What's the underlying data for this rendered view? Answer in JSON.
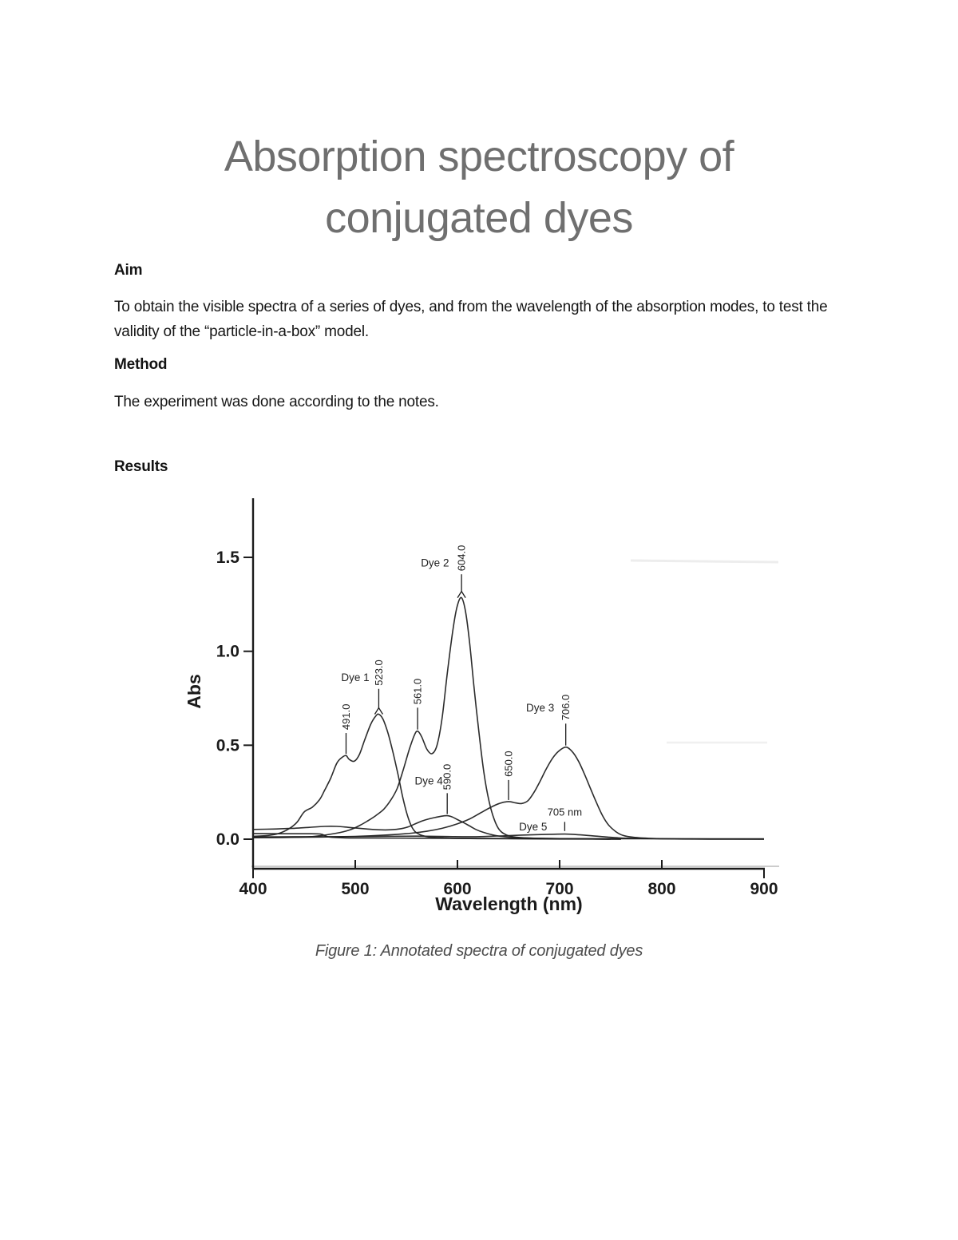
{
  "document": {
    "title_line1": "Absorption spectroscopy of",
    "title_line2": "conjugated dyes",
    "sections": [
      {
        "heading": "Aim",
        "body": "To obtain the visible spectra of a series of dyes, and from the wavelength of the absorption modes, to test the validity of the “particle-in-a-box” model."
      },
      {
        "heading": "Method",
        "body": "The experiment was done according to the notes."
      },
      {
        "heading": "Results",
        "body": ""
      }
    ],
    "figure_caption": "Figure 1: Annotated spectra of conjugated dyes"
  },
  "chart_data": {
    "type": "line",
    "title": "",
    "xlabel": "Wavelength (nm)",
    "ylabel": "Abs",
    "xlim": [
      400,
      900
    ],
    "ylim": [
      0,
      1.75
    ],
    "grid": false,
    "legend": "none (curves annotated in-plot)",
    "x_ticks": [
      {
        "value": 400,
        "label": "400"
      },
      {
        "value": 500,
        "label": "500"
      },
      {
        "value": 600,
        "label": "600"
      },
      {
        "value": 700,
        "label": "700"
      },
      {
        "value": 800,
        "label": "800"
      },
      {
        "value": 900,
        "label": "900"
      }
    ],
    "y_ticks": [
      {
        "value": 0.0,
        "label": "0.0"
      },
      {
        "value": 0.5,
        "label": "0.5"
      },
      {
        "value": 1.0,
        "label": "1.0"
      },
      {
        "value": 1.5,
        "label": "1.5"
      }
    ],
    "series": [
      {
        "name": "Dye 1",
        "peak_nm": 523.0,
        "peak_abs": 0.665,
        "points": [
          [
            400,
            0.015
          ],
          [
            415,
            0.02
          ],
          [
            425,
            0.03
          ],
          [
            435,
            0.055
          ],
          [
            443,
            0.09
          ],
          [
            450,
            0.145
          ],
          [
            458,
            0.17
          ],
          [
            465,
            0.21
          ],
          [
            470,
            0.26
          ],
          [
            476,
            0.325
          ],
          [
            482,
            0.405
          ],
          [
            487,
            0.435
          ],
          [
            491,
            0.445
          ],
          [
            494,
            0.425
          ],
          [
            499,
            0.415
          ],
          [
            504,
            0.45
          ],
          [
            509,
            0.525
          ],
          [
            515,
            0.61
          ],
          [
            520,
            0.655
          ],
          [
            523,
            0.665
          ],
          [
            527,
            0.64
          ],
          [
            532,
            0.565
          ],
          [
            537,
            0.46
          ],
          [
            542,
            0.34
          ],
          [
            547,
            0.21
          ],
          [
            552,
            0.11
          ],
          [
            557,
            0.05
          ],
          [
            563,
            0.025
          ],
          [
            572,
            0.012
          ],
          [
            590,
            0.006
          ],
          [
            620,
            0.003
          ],
          [
            700,
            0.001
          ],
          [
            760,
            0.0
          ]
        ]
      },
      {
        "name": "Dye 2",
        "peak_nm": 604.0,
        "peak_abs": 1.285,
        "points": [
          [
            400,
            0.008
          ],
          [
            440,
            0.01
          ],
          [
            460,
            0.015
          ],
          [
            480,
            0.03
          ],
          [
            495,
            0.05
          ],
          [
            505,
            0.075
          ],
          [
            513,
            0.1
          ],
          [
            520,
            0.125
          ],
          [
            528,
            0.16
          ],
          [
            535,
            0.21
          ],
          [
            541,
            0.27
          ],
          [
            547,
            0.37
          ],
          [
            553,
            0.48
          ],
          [
            558,
            0.555
          ],
          [
            561,
            0.575
          ],
          [
            565,
            0.545
          ],
          [
            570,
            0.48
          ],
          [
            575,
            0.455
          ],
          [
            580,
            0.5
          ],
          [
            585,
            0.645
          ],
          [
            590,
            0.88
          ],
          [
            596,
            1.13
          ],
          [
            600,
            1.245
          ],
          [
            604,
            1.285
          ],
          [
            608,
            1.21
          ],
          [
            612,
            1.04
          ],
          [
            616,
            0.82
          ],
          [
            621,
            0.57
          ],
          [
            626,
            0.35
          ],
          [
            631,
            0.2
          ],
          [
            636,
            0.105
          ],
          [
            641,
            0.05
          ],
          [
            647,
            0.025
          ],
          [
            655,
            0.012
          ],
          [
            670,
            0.006
          ],
          [
            700,
            0.003
          ],
          [
            750,
            0.0
          ]
        ]
      },
      {
        "name": "Dye 3",
        "peak_nm": 706.0,
        "peak_abs": 0.49,
        "points": [
          [
            400,
            0.008
          ],
          [
            450,
            0.01
          ],
          [
            500,
            0.015
          ],
          [
            530,
            0.022
          ],
          [
            555,
            0.032
          ],
          [
            570,
            0.042
          ],
          [
            585,
            0.058
          ],
          [
            600,
            0.082
          ],
          [
            612,
            0.108
          ],
          [
            622,
            0.138
          ],
          [
            632,
            0.168
          ],
          [
            641,
            0.19
          ],
          [
            650,
            0.2
          ],
          [
            657,
            0.193
          ],
          [
            663,
            0.19
          ],
          [
            669,
            0.205
          ],
          [
            675,
            0.25
          ],
          [
            681,
            0.31
          ],
          [
            687,
            0.375
          ],
          [
            693,
            0.43
          ],
          [
            699,
            0.468
          ],
          [
            706,
            0.49
          ],
          [
            712,
            0.468
          ],
          [
            718,
            0.42
          ],
          [
            724,
            0.35
          ],
          [
            730,
            0.272
          ],
          [
            736,
            0.195
          ],
          [
            742,
            0.125
          ],
          [
            748,
            0.075
          ],
          [
            755,
            0.04
          ],
          [
            762,
            0.02
          ],
          [
            772,
            0.01
          ],
          [
            790,
            0.004
          ],
          [
            820,
            0.001
          ],
          [
            900,
            0.0
          ]
        ]
      },
      {
        "name": "Dye 4",
        "peak_nm": 590.0,
        "peak_abs": 0.125,
        "points": [
          [
            400,
            0.052
          ],
          [
            420,
            0.054
          ],
          [
            440,
            0.058
          ],
          [
            455,
            0.063
          ],
          [
            470,
            0.068
          ],
          [
            482,
            0.068
          ],
          [
            495,
            0.062
          ],
          [
            510,
            0.055
          ],
          [
            522,
            0.05
          ],
          [
            535,
            0.05
          ],
          [
            545,
            0.056
          ],
          [
            552,
            0.066
          ],
          [
            558,
            0.08
          ],
          [
            565,
            0.096
          ],
          [
            572,
            0.108
          ],
          [
            578,
            0.115
          ],
          [
            584,
            0.122
          ],
          [
            590,
            0.125
          ],
          [
            595,
            0.118
          ],
          [
            600,
            0.104
          ],
          [
            606,
            0.088
          ],
          [
            612,
            0.07
          ],
          [
            618,
            0.052
          ],
          [
            625,
            0.037
          ],
          [
            632,
            0.026
          ],
          [
            640,
            0.017
          ],
          [
            650,
            0.011
          ],
          [
            662,
            0.007
          ],
          [
            680,
            0.004
          ],
          [
            710,
            0.002
          ],
          [
            760,
            0.0
          ]
        ]
      },
      {
        "name": "Dye 5",
        "peak_nm": 705,
        "peak_abs": 0.027,
        "points": [
          [
            400,
            0.012
          ],
          [
            440,
            0.013
          ],
          [
            480,
            0.013
          ],
          [
            520,
            0.015
          ],
          [
            560,
            0.016
          ],
          [
            590,
            0.014
          ],
          [
            615,
            0.013
          ],
          [
            635,
            0.016
          ],
          [
            655,
            0.02
          ],
          [
            675,
            0.024
          ],
          [
            690,
            0.026
          ],
          [
            705,
            0.027
          ],
          [
            718,
            0.024
          ],
          [
            732,
            0.018
          ],
          [
            745,
            0.012
          ],
          [
            758,
            0.007
          ],
          [
            775,
            0.004
          ],
          [
            800,
            0.002
          ],
          [
            850,
            0.001
          ],
          [
            900,
            0.0
          ]
        ]
      },
      {
        "name": "baseline",
        "peak_nm": null,
        "peak_abs": null,
        "points": [
          [
            400,
            0.03
          ],
          [
            425,
            0.029
          ],
          [
            450,
            0.029
          ],
          [
            466,
            0.027
          ],
          [
            474,
            0.012
          ],
          [
            490,
            0.007
          ],
          [
            520,
            0.006
          ],
          [
            560,
            0.005
          ],
          [
            620,
            0.004
          ],
          [
            700,
            0.003
          ],
          [
            800,
            0.002
          ],
          [
            900,
            0.002
          ]
        ]
      }
    ],
    "peak_annotations": [
      {
        "label": "491.0",
        "wavelength_nm": 491,
        "abs": 0.445,
        "line_top_abs": 0.565,
        "rotated": true,
        "fork": false
      },
      {
        "label": "523.0",
        "wavelength_nm": 523,
        "abs": 0.665,
        "line_top_abs": 0.8,
        "rotated": true,
        "fork": true
      },
      {
        "label": "561.0",
        "wavelength_nm": 561,
        "abs": 0.575,
        "line_top_abs": 0.7,
        "rotated": true,
        "fork": false
      },
      {
        "label": "604.0",
        "wavelength_nm": 604,
        "abs": 1.285,
        "line_top_abs": 1.41,
        "rotated": true,
        "fork": true
      },
      {
        "label": "590.0",
        "wavelength_nm": 590,
        "abs": 0.125,
        "line_top_abs": 0.245,
        "rotated": true,
        "fork": false
      },
      {
        "label": "650.0",
        "wavelength_nm": 650,
        "abs": 0.2,
        "line_top_abs": 0.315,
        "rotated": true,
        "fork": false
      },
      {
        "label": "706.0",
        "wavelength_nm": 706,
        "abs": 0.49,
        "line_top_abs": 0.615,
        "rotated": true,
        "fork": false
      },
      {
        "label": "705 nm",
        "wavelength_nm": 705,
        "abs": 0.035,
        "line_top_abs": 0.092,
        "rotated": false,
        "fork": false,
        "text_abs": 0.125
      }
    ],
    "curve_labels": [
      {
        "text": "Dye 1",
        "wavelength_nm": 500,
        "abs": 0.86
      },
      {
        "text": "Dye 2",
        "wavelength_nm": 578,
        "abs": 1.47
      },
      {
        "text": "Dye 3",
        "wavelength_nm": 681,
        "abs": 0.7
      },
      {
        "text": "Dye 4",
        "wavelength_nm": 572,
        "abs": 0.31
      },
      {
        "text": "Dye 5",
        "wavelength_nm": 674,
        "abs": 0.065
      }
    ]
  }
}
